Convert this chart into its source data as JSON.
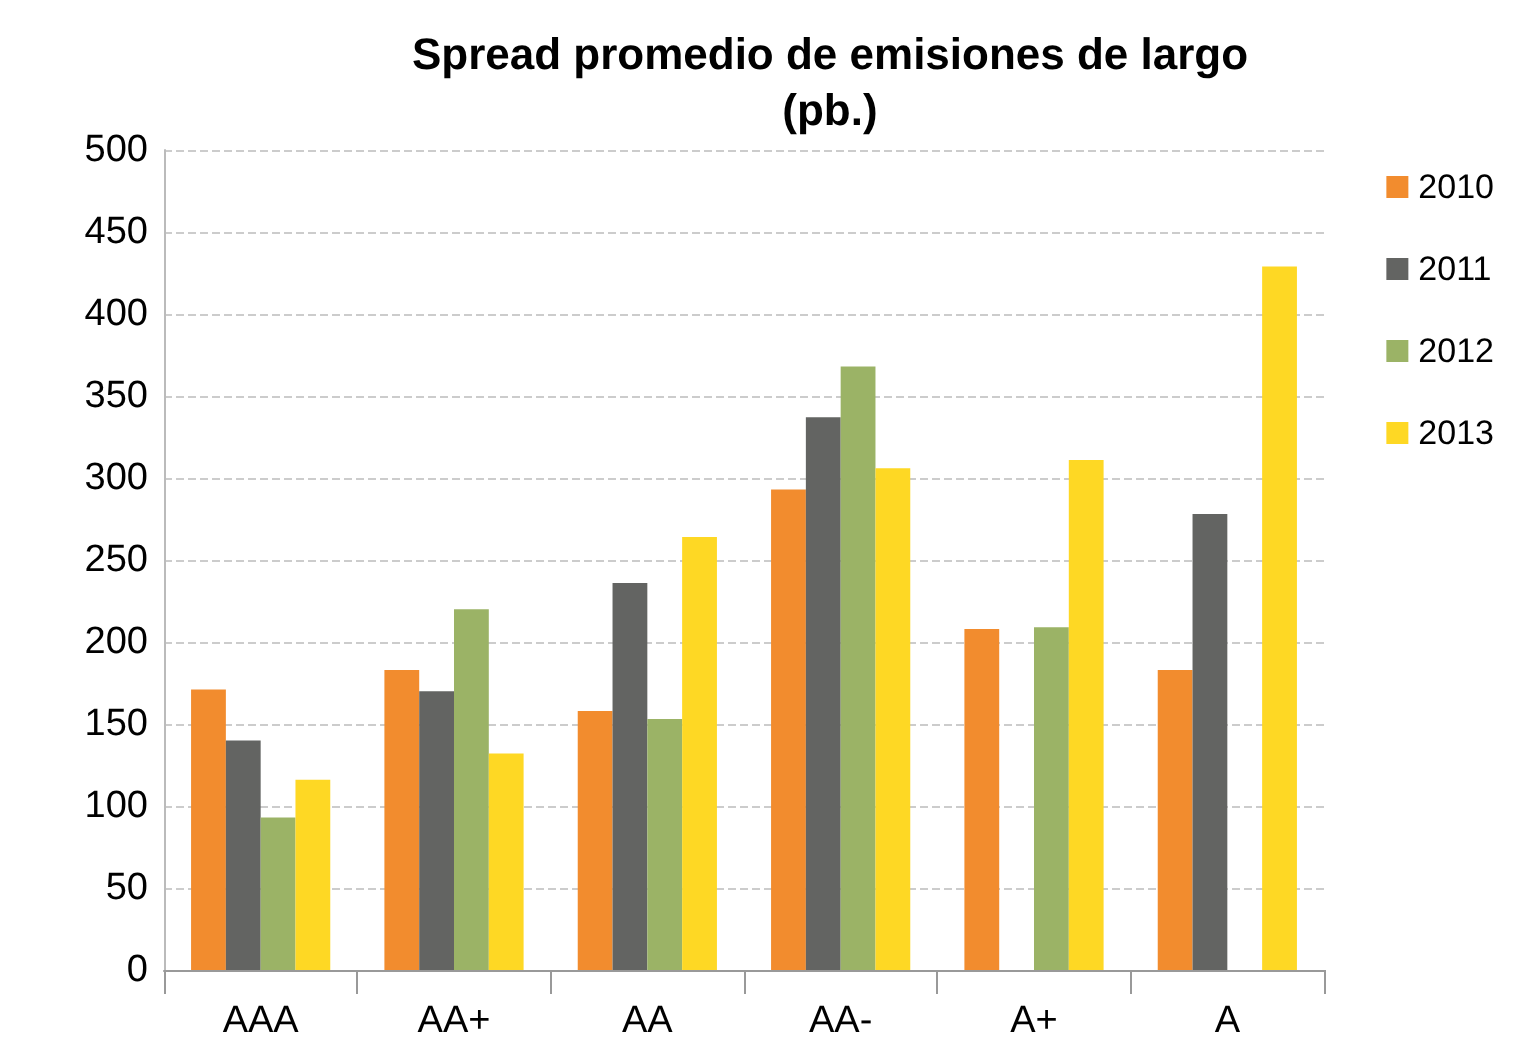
{
  "chart_data": {
    "type": "bar",
    "title": "Spread promedio de emisiones de largo\n(pb.)",
    "categories": [
      "AAA",
      "AA+",
      "AA",
      "AA-",
      "A+",
      "A"
    ],
    "series": [
      {
        "name": "2010",
        "color": "#f28c2e",
        "values": [
          171,
          183,
          158,
          293,
          208,
          183
        ]
      },
      {
        "name": "2011",
        "color": "#636462",
        "values": [
          140,
          170,
          236,
          337,
          null,
          278
        ]
      },
      {
        "name": "2012",
        "color": "#9bb366",
        "values": [
          93,
          220,
          153,
          368,
          209,
          null
        ]
      },
      {
        "name": "2013",
        "color": "#fed824",
        "values": [
          116,
          132,
          264,
          306,
          311,
          429
        ]
      }
    ],
    "ylim": [
      0,
      500
    ],
    "yticks": [
      0,
      50,
      100,
      150,
      200,
      250,
      300,
      350,
      400,
      450,
      500
    ],
    "grid": "y",
    "legend": "right"
  }
}
